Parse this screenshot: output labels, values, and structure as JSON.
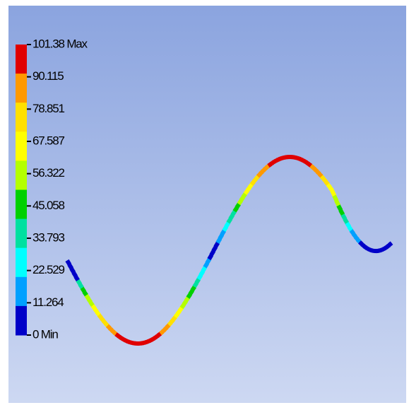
{
  "legend": {
    "labels": [
      "101.38 Max",
      "90.115",
      "78.851",
      "67.587",
      "56.322",
      "45.058",
      "33.793",
      "22.529",
      "11.264",
      "0 Min"
    ],
    "band_colors": [
      "#e00000",
      "#ff9900",
      "#ffe000",
      "#ffff00",
      "#b4ff00",
      "#00d000",
      "#00e0a0",
      "#00ffff",
      "#00a0ff",
      "#0000c8"
    ]
  }
}
